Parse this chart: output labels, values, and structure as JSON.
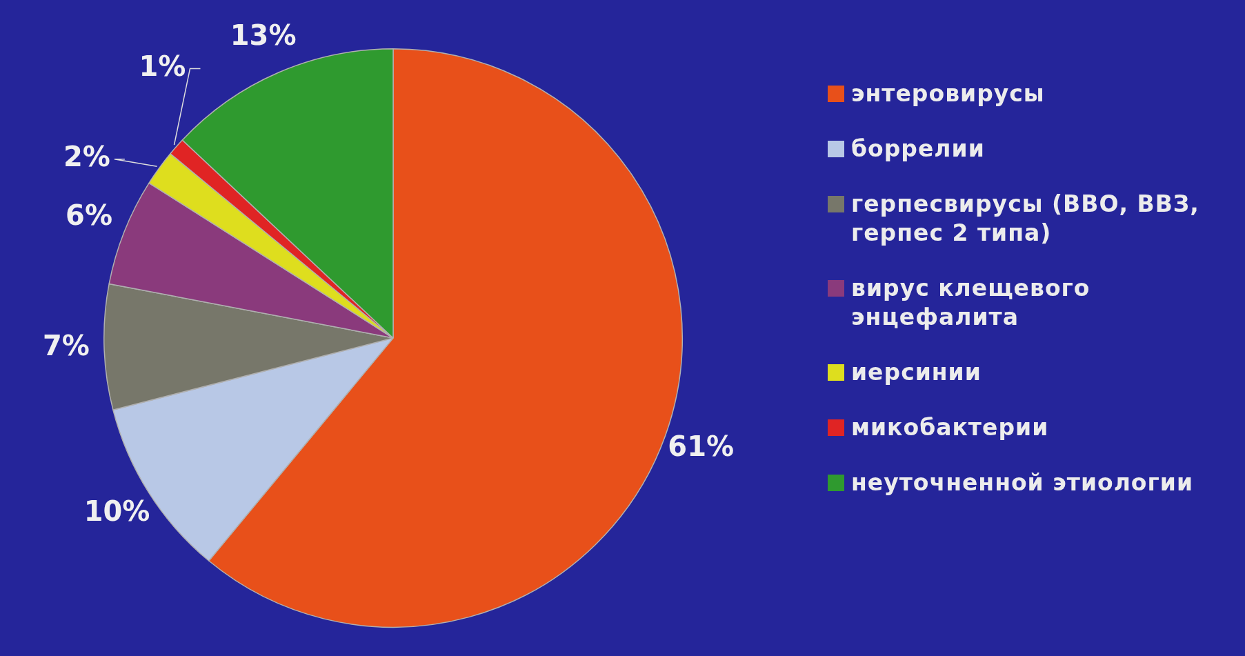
{
  "chart_data": {
    "type": "pie",
    "categories": [
      "энтеровирусы",
      "боррелии",
      "герпесвирусы (ВВО, ВВЗ, герпес 2 типа)",
      "вирус клещевого энцефалита",
      "иерсинии",
      "микобактерии",
      "неуточненной этиологии"
    ],
    "values": [
      61,
      10,
      7,
      6,
      2,
      1,
      13
    ],
    "colors": [
      "#e8501a",
      "#b8c8e6",
      "#77776a",
      "#8a3a7c",
      "#dede1e",
      "#e02424",
      "#2f9a2f"
    ],
    "value_labels": [
      "61%",
      "10%",
      "7%",
      "6%",
      "2%",
      "1%",
      "13%"
    ],
    "legend": "right"
  }
}
